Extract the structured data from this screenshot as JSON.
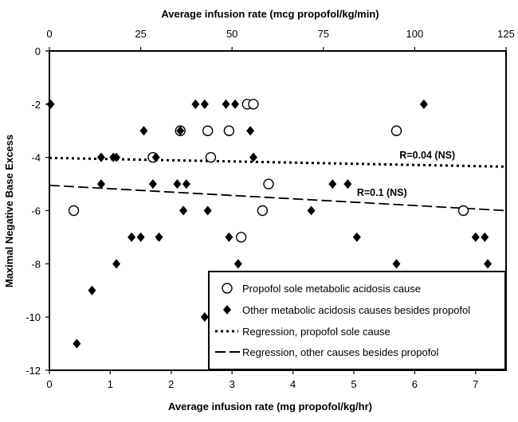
{
  "chart_data": {
    "type": "scatter",
    "xlabel": "Average infusion rate (mg propofol/kg/hr)",
    "x2label": "Average infusion rate (mcg propofol/kg/min)",
    "ylabel": "Maximal Negative Base Excess",
    "xlim": [
      0,
      7.5
    ],
    "x2lim": [
      0,
      125
    ],
    "ylim": [
      -12,
      0
    ],
    "x_ticks": [
      "0",
      "1",
      "2",
      "3",
      "4",
      "5",
      "6",
      "7"
    ],
    "x2_ticks": [
      "0",
      "25",
      "50",
      "75",
      "100",
      "125"
    ],
    "y_ticks": [
      "0",
      "-2",
      "-4",
      "-6",
      "-8",
      "-10",
      "-12"
    ],
    "grid": false,
    "legend_position": "bottom-right",
    "series": [
      {
        "name": "Propofol sole metabolic acidosis cause",
        "marker": "open-circle",
        "points": [
          {
            "x": 0.4,
            "y": -6
          },
          {
            "x": 1.7,
            "y": -4
          },
          {
            "x": 2.15,
            "y": -3
          },
          {
            "x": 2.6,
            "y": -3
          },
          {
            "x": 2.65,
            "y": -4
          },
          {
            "x": 2.95,
            "y": -3
          },
          {
            "x": 3.15,
            "y": -7
          },
          {
            "x": 3.25,
            "y": -2
          },
          {
            "x": 3.35,
            "y": -2
          },
          {
            "x": 3.5,
            "y": -6
          },
          {
            "x": 3.6,
            "y": -5
          },
          {
            "x": 5.7,
            "y": -3
          },
          {
            "x": 6.8,
            "y": -6
          }
        ]
      },
      {
        "name": "Other metabolic acidosis causes besides propofol",
        "marker": "filled-diamond",
        "points": [
          {
            "x": 0.02,
            "y": -2
          },
          {
            "x": 0.45,
            "y": -11
          },
          {
            "x": 0.7,
            "y": -9
          },
          {
            "x": 0.85,
            "y": -4
          },
          {
            "x": 0.85,
            "y": -5
          },
          {
            "x": 1.05,
            "y": -4
          },
          {
            "x": 1.1,
            "y": -4
          },
          {
            "x": 1.1,
            "y": -8
          },
          {
            "x": 1.35,
            "y": -7
          },
          {
            "x": 1.5,
            "y": -7
          },
          {
            "x": 1.55,
            "y": -3
          },
          {
            "x": 1.7,
            "y": -5
          },
          {
            "x": 1.75,
            "y": -4
          },
          {
            "x": 1.8,
            "y": -7
          },
          {
            "x": 2.1,
            "y": -5
          },
          {
            "x": 2.15,
            "y": -3
          },
          {
            "x": 2.2,
            "y": -6
          },
          {
            "x": 2.25,
            "y": -5
          },
          {
            "x": 2.4,
            "y": -2
          },
          {
            "x": 2.55,
            "y": -2
          },
          {
            "x": 2.55,
            "y": -10
          },
          {
            "x": 2.6,
            "y": -6
          },
          {
            "x": 2.9,
            "y": -2
          },
          {
            "x": 2.95,
            "y": -7
          },
          {
            "x": 3.05,
            "y": -2
          },
          {
            "x": 3.1,
            "y": -8
          },
          {
            "x": 3.3,
            "y": -3
          },
          {
            "x": 3.35,
            "y": -4
          },
          {
            "x": 4.3,
            "y": -6
          },
          {
            "x": 4.65,
            "y": -5
          },
          {
            "x": 4.9,
            "y": -5
          },
          {
            "x": 5.05,
            "y": -7
          },
          {
            "x": 5.7,
            "y": -8
          },
          {
            "x": 6.15,
            "y": -2
          },
          {
            "x": 7.0,
            "y": -7
          },
          {
            "x": 7.15,
            "y": -7
          },
          {
            "x": 7.2,
            "y": -8
          }
        ]
      }
    ],
    "regressions": [
      {
        "name": "Regression, propofol sole cause",
        "style": "dotted",
        "y_at_xmin": -4.02,
        "y_at_xmax": -4.35,
        "label": "R=0.04 (NS)"
      },
      {
        "name": "Regression, other causes besides propofol",
        "style": "dashed",
        "y_at_xmin": -5.05,
        "y_at_xmax": -6.0,
        "label": "R=0.1 (NS)"
      }
    ]
  }
}
